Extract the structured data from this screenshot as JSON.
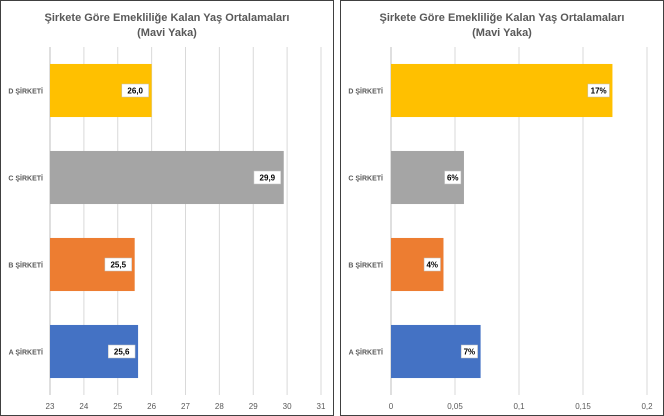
{
  "chart_data": [
    {
      "type": "bar",
      "orientation": "horizontal",
      "title": "Şirkete Göre Emekliliğe Kalan Yaş Ortalamaları",
      "subtitle": "(Mavi Yaka)",
      "categories": [
        "D ŞİRKETİ",
        "C ŞİRKETİ",
        "B ŞİRKETİ",
        "A ŞİRKETİ"
      ],
      "values": [
        26.0,
        29.9,
        25.5,
        25.6
      ],
      "data_labels": [
        "26,0",
        "29,9",
        "25,5",
        "25,6"
      ],
      "colors": [
        "#FFC000",
        "#A5A5A5",
        "#ED7D31",
        "#4472C4"
      ],
      "xlim": [
        23,
        31
      ],
      "xticks": [
        23,
        24,
        25,
        26,
        27,
        28,
        29,
        30,
        31
      ],
      "xtick_labels": [
        "23",
        "24",
        "25",
        "26",
        "27",
        "28",
        "29",
        "30",
        "31"
      ],
      "grid": "vertical",
      "legend": "none"
    },
    {
      "type": "bar",
      "orientation": "horizontal",
      "title": "Şirkete Göre Emekliliğe Kalan Yaş Ortalamaları",
      "subtitle": "(Mavi Yaka)",
      "categories": [
        "D ŞİRKETİ",
        "C ŞİRKETİ",
        "B ŞİRKETİ",
        "A ŞİRKETİ"
      ],
      "values": [
        0.173,
        0.057,
        0.041,
        0.07
      ],
      "data_labels": [
        "17%",
        "6%",
        "4%",
        "7%"
      ],
      "colors": [
        "#FFC000",
        "#A5A5A5",
        "#ED7D31",
        "#4472C4"
      ],
      "xlim": [
        0,
        0.2
      ],
      "xticks": [
        0,
        0.05,
        0.1,
        0.15,
        0.2
      ],
      "xtick_labels": [
        "0",
        "0,05",
        "0,1",
        "0,15",
        "0,2"
      ],
      "grid": "vertical",
      "legend": "none"
    }
  ]
}
